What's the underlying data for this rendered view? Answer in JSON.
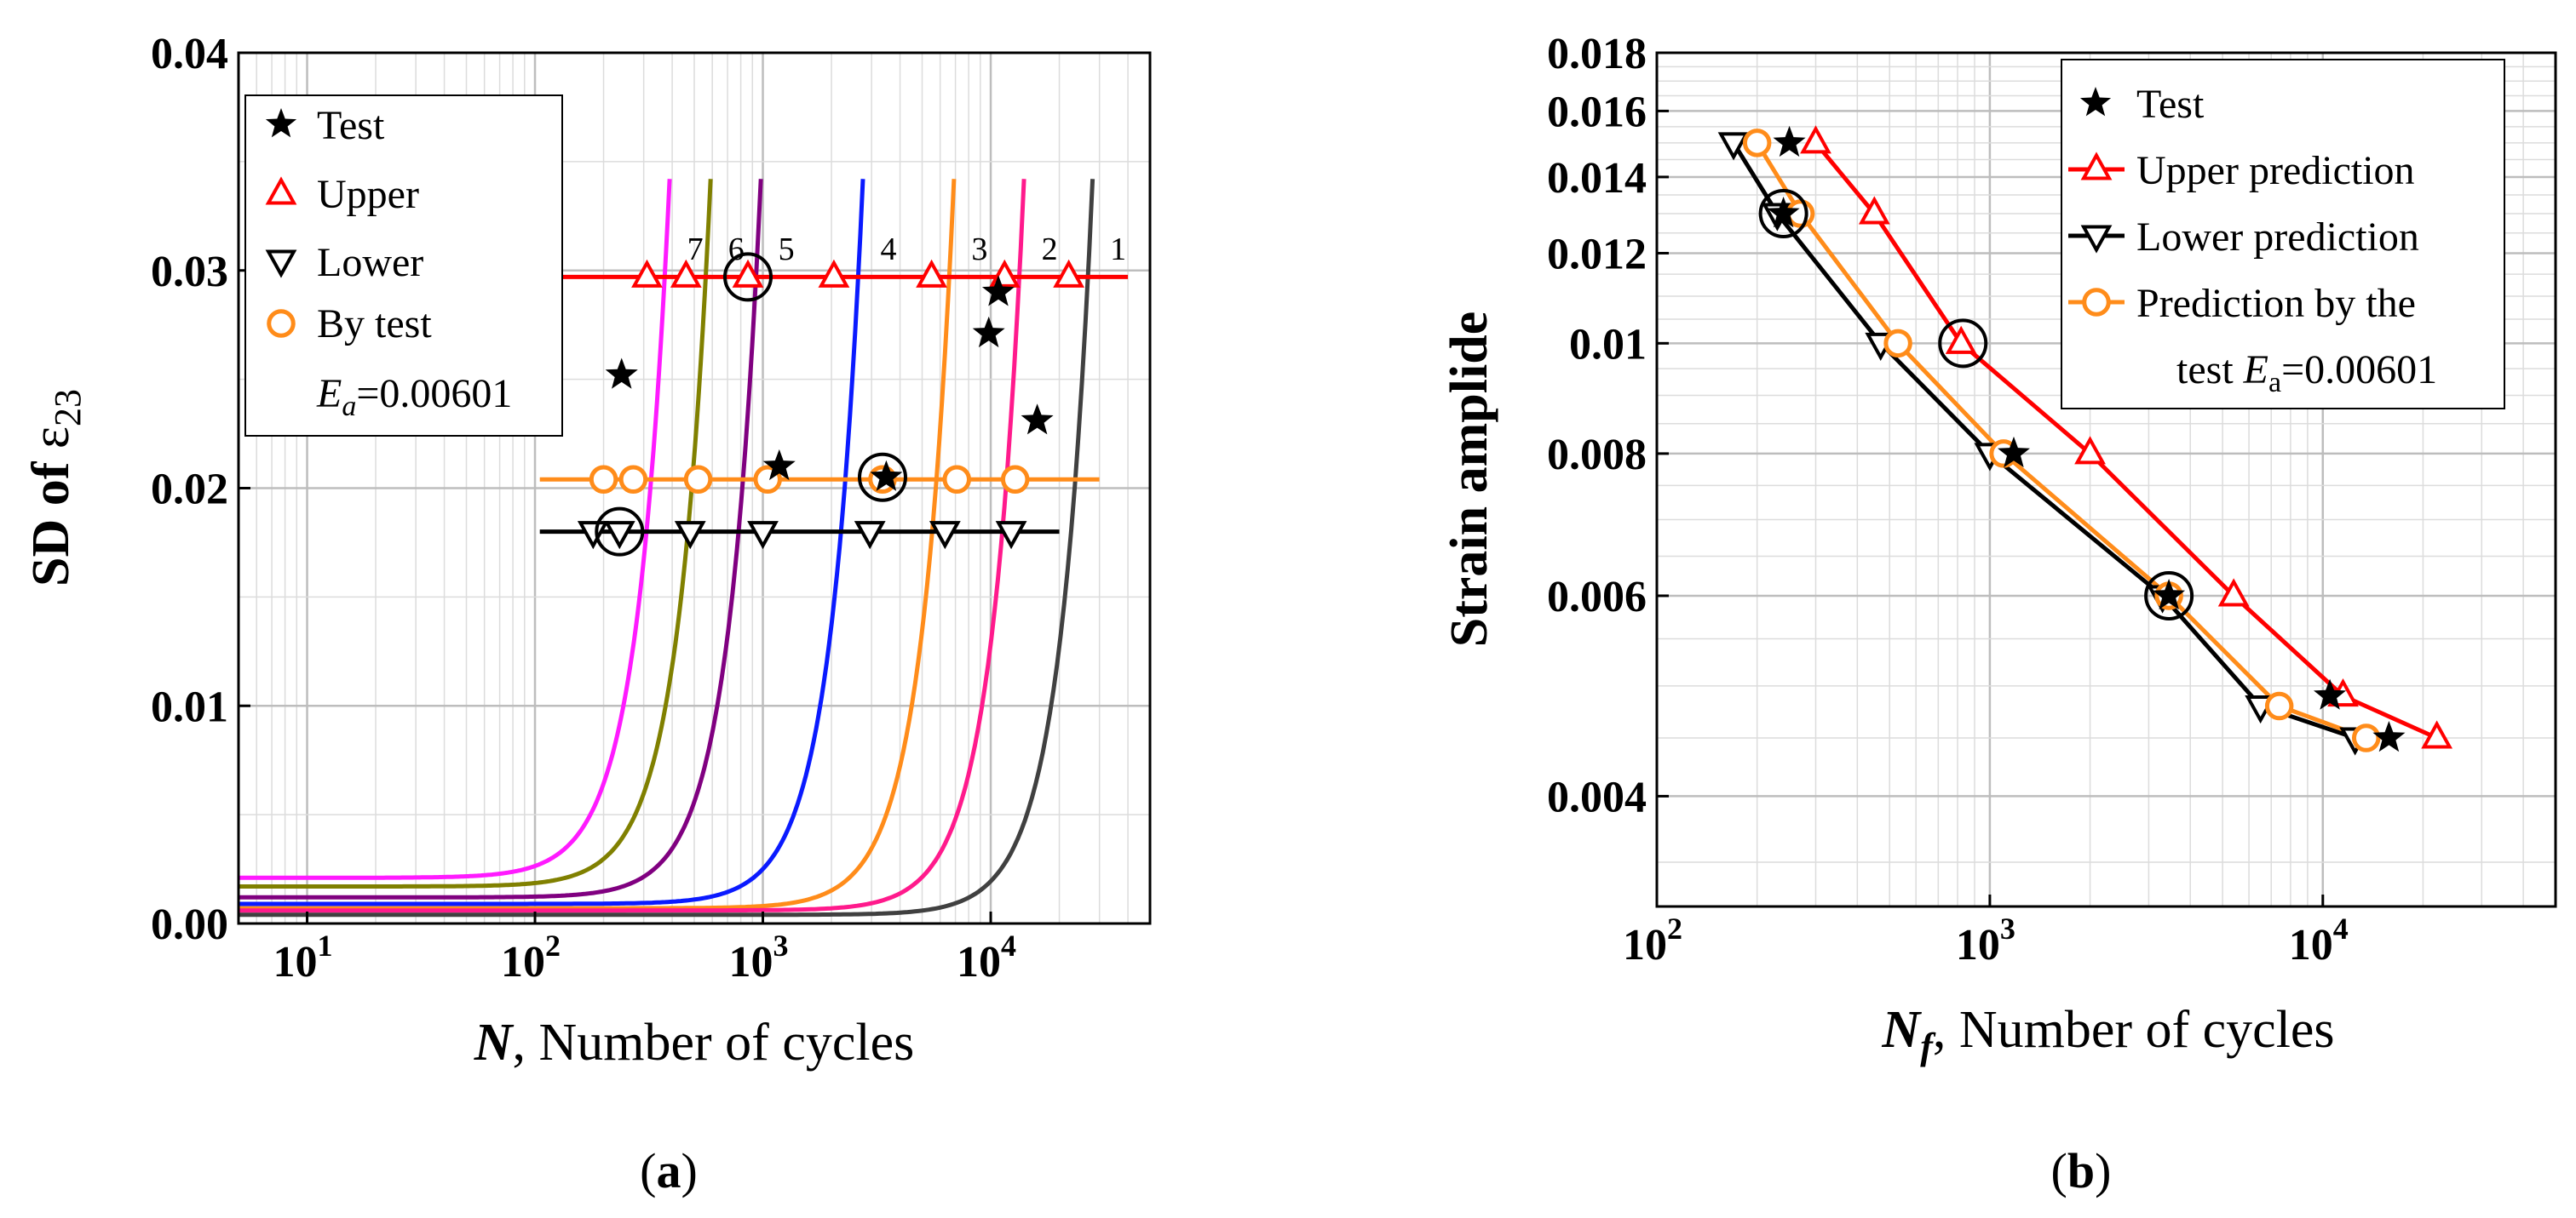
{
  "chart_data": [
    {
      "panel": "a",
      "caption_open": "(",
      "caption_letter": "a",
      "caption_close": ")",
      "type": "line",
      "x_scale": "log",
      "xlim": [
        5,
        50000
      ],
      "ylim": [
        0,
        0.04
      ],
      "grid": true,
      "xlabel_var": "N",
      "xlabel_text": ", Number of cycles",
      "ylabel_prefix": "SD of ",
      "ylabel_symbol": "ε",
      "ylabel_sub": "23",
      "x_ticks": [
        {
          "value": 10,
          "base": "10",
          "exp": "1"
        },
        {
          "value": 100,
          "base": "10",
          "exp": "2"
        },
        {
          "value": 1000,
          "base": "10",
          "exp": "3"
        },
        {
          "value": 10000,
          "base": "10",
          "exp": "4"
        }
      ],
      "y_ticks": [
        {
          "value": 0.0,
          "label": "0.00"
        },
        {
          "value": 0.01,
          "label": "0.01"
        },
        {
          "value": 0.02,
          "label": "0.02"
        },
        {
          "value": 0.03,
          "label": "0.03"
        },
        {
          "value": 0.04,
          "label": "0.04"
        }
      ],
      "curves": [
        {
          "label": "7",
          "color": "#ff1aff",
          "y0": 0.0021,
          "xe": 390
        },
        {
          "label": "6",
          "color": "#808000",
          "y0": 0.0017,
          "xe": 590
        },
        {
          "label": "5",
          "color": "#800080",
          "y0": 0.0012,
          "xe": 980
        },
        {
          "label": "4",
          "color": "#0a1aff",
          "y0": 0.0009,
          "xe": 2750
        },
        {
          "label": "3",
          "color": "#ff8c1a",
          "y0": 0.0007,
          "xe": 6900
        },
        {
          "label": "2",
          "color": "#ff1a8c",
          "y0": 0.0006,
          "xe": 14000
        },
        {
          "label": "1",
          "color": "#404040",
          "y0": 0.0004,
          "xe": 28000
        }
      ],
      "curve_end_y": 0.0342,
      "series": [
        {
          "name": "Upper",
          "marker": "triangle-up",
          "color": "#ff0000",
          "line_y": 0.0297,
          "line_x": [
            125,
            40000
          ],
          "points": [
            310,
            460,
            860,
            2050,
            5500,
            11500,
            22000
          ]
        },
        {
          "name": "By test",
          "marker": "circle",
          "color": "#ff8c1a",
          "line_y": 0.0204,
          "line_x": [
            105,
            30000
          ],
          "points": [
            200,
            270,
            520,
            1050,
            3350,
            7100,
            12800
          ]
        },
        {
          "name": "Lower",
          "marker": "triangle-down",
          "color": "#000000",
          "line_y": 0.018,
          "line_x": [
            105,
            20000
          ],
          "points": [
            180,
            235,
            480,
            1000,
            2950,
            6300,
            12300
          ]
        }
      ],
      "test_points": [
        [
          240,
          0.0252
        ],
        [
          1180,
          0.021
        ],
        [
          3480,
          0.0205
        ],
        [
          9800,
          0.0271
        ],
        [
          10800,
          0.029
        ],
        [
          16000,
          0.0231
        ]
      ],
      "highlighted": [
        [
          860,
          0.0297
        ],
        [
          3350,
          0.0205
        ],
        [
          235,
          0.018
        ]
      ],
      "legend": {
        "position": "top-left",
        "items": [
          "Test",
          "Upper",
          "Lower",
          "By test"
        ],
        "note_var": "E",
        "note_sub": "a",
        "note_value": "=0.00601"
      }
    },
    {
      "panel": "b",
      "caption_open": "(",
      "caption_letter": "b",
      "caption_close": ")",
      "type": "line",
      "x_scale": "log",
      "y_scale": "log",
      "xlim": [
        100,
        50000
      ],
      "ylim": [
        0.0032,
        0.018
      ],
      "grid": true,
      "xlabel_var": "N",
      "xlabel_sub": "f",
      "xlabel_text": ", Number of cycles",
      "ylabel": "Strain amplide",
      "x_ticks": [
        {
          "value": 100,
          "base": "10",
          "exp": "2"
        },
        {
          "value": 1000,
          "base": "10",
          "exp": "3"
        },
        {
          "value": 10000,
          "base": "10",
          "exp": "4"
        }
      ],
      "y_ticks": [
        {
          "value": 0.004,
          "label": "0.004"
        },
        {
          "value": 0.006,
          "label": "0.006"
        },
        {
          "value": 0.008,
          "label": "0.008"
        },
        {
          "value": 0.01,
          "label": "0.01"
        },
        {
          "value": 0.012,
          "label": "0.012"
        },
        {
          "value": 0.014,
          "label": "0.014"
        },
        {
          "value": 0.016,
          "label": "0.016"
        },
        {
          "value": 0.018,
          "label": "0.018"
        }
      ],
      "series": [
        {
          "name": "Upper prediction",
          "marker": "triangle-up",
          "color": "#ff0000",
          "x": [
            300,
            450,
            820,
            2000,
            5400,
            11500,
            22000
          ],
          "y": [
            0.015,
            0.013,
            0.01,
            0.008,
            0.006,
            0.0049,
            0.0045
          ]
        },
        {
          "name": "Lower prediction",
          "marker": "triangle-down",
          "color": "#000000",
          "x": [
            170,
            230,
            470,
            1000,
            3300,
            6500,
            12500
          ],
          "y": [
            0.015,
            0.013,
            0.01,
            0.008,
            0.006,
            0.0048,
            0.0045
          ]
        },
        {
          "name": "Prediction by the test",
          "marker": "circle",
          "color": "#ff8c1a",
          "x": [
            200,
            270,
            530,
            1100,
            3450,
            7400,
            13500
          ],
          "y": [
            0.015,
            0.013,
            0.01,
            0.008,
            0.006,
            0.0048,
            0.0045
          ]
        }
      ],
      "test_points": [
        [
          250,
          0.015
        ],
        [
          240,
          0.013
        ],
        [
          1180,
          0.008
        ],
        [
          3450,
          0.006
        ],
        [
          10500,
          0.0049
        ],
        [
          15800,
          0.0045
        ]
      ],
      "highlighted": [
        [
          240,
          0.013
        ],
        [
          830,
          0.01
        ],
        [
          3450,
          0.006
        ]
      ],
      "legend": {
        "position": "top-right",
        "items": [
          "Test",
          "Upper prediction",
          "Lower prediction",
          "Prediction by the",
          "test "
        ],
        "note_var": "E",
        "note_sub": "a",
        "note_value": "=0.00601"
      }
    }
  ]
}
